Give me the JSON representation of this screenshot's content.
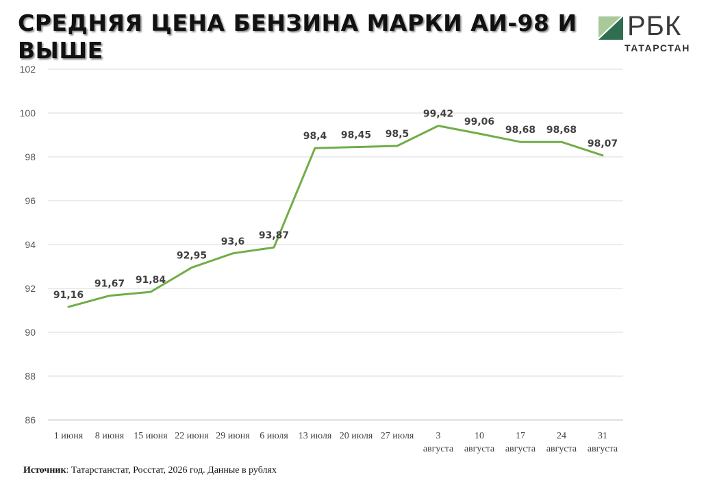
{
  "header": {
    "title": "СРЕДНЯЯ ЦЕНА БЕНЗИНА МАРКИ АИ-98 И ВЫШЕ"
  },
  "logo": {
    "name": "РБК",
    "region": "ТАТАРСТАН",
    "colors": {
      "dark": "#2f6e4f",
      "light": "#a9c99a"
    }
  },
  "footer": {
    "source_label": "Источник",
    "source_text": ": Татарстанстат, Росстат, 2026 год. Данные в рублях"
  },
  "chart_data": {
    "type": "line",
    "title": "СРЕДНЯЯ ЦЕНА БЕНЗИНА МАРКИ АИ-98 И ВЫШЕ",
    "xlabel": "",
    "ylabel": "",
    "ylim": [
      86,
      102
    ],
    "yticks": [
      86,
      88,
      90,
      92,
      94,
      96,
      98,
      100,
      102
    ],
    "grid": true,
    "legend": "none",
    "line_color": "#70ad47",
    "categories": [
      [
        "1 июня"
      ],
      [
        "8 июня"
      ],
      [
        "15 июня"
      ],
      [
        "22 июня"
      ],
      [
        "29 июня"
      ],
      [
        "6 июля"
      ],
      [
        "13 июля"
      ],
      [
        "20 июля"
      ],
      [
        "27 июля"
      ],
      [
        "3",
        "августа"
      ],
      [
        "10",
        "августа"
      ],
      [
        "17",
        "августа"
      ],
      [
        "24",
        "августа"
      ],
      [
        "31",
        "августа"
      ]
    ],
    "values": [
      91.16,
      91.67,
      91.84,
      92.95,
      93.6,
      93.87,
      98.4,
      98.45,
      98.5,
      99.42,
      99.06,
      98.68,
      98.68,
      98.07
    ],
    "data_labels": [
      "91,16",
      "91,67",
      "91,84",
      "92,95",
      "93,6",
      "93,87",
      "98,4",
      "98,45",
      "98,5",
      "99,42",
      "99,06",
      "98,68",
      "98,68",
      "98,07"
    ]
  }
}
